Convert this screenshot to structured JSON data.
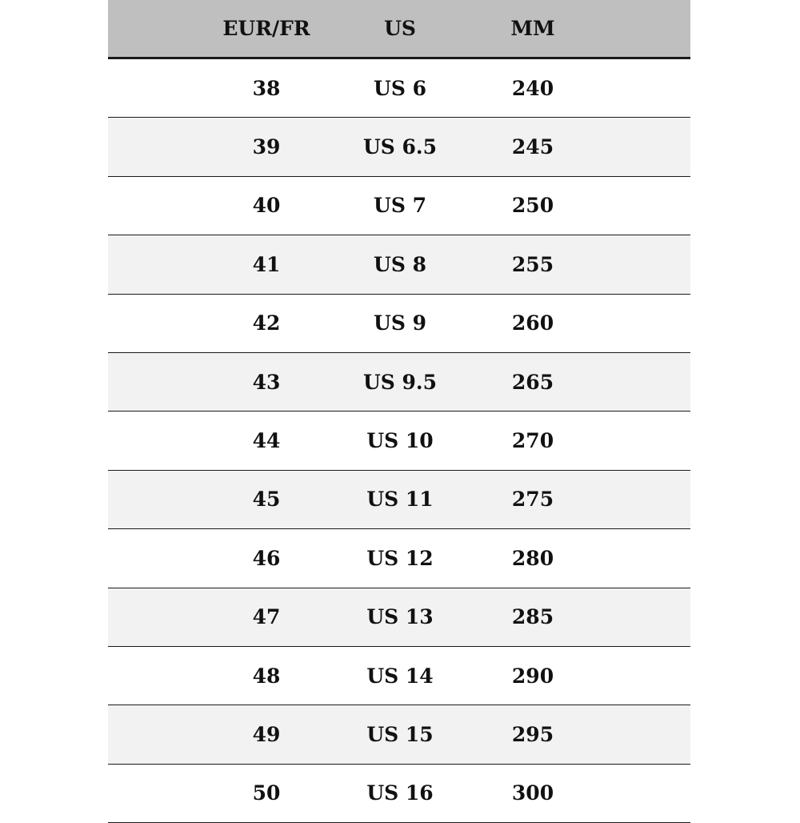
{
  "table": {
    "headers": [
      "EUR/FR",
      "US",
      "MM"
    ],
    "rows": [
      [
        "38",
        "US 6",
        "240"
      ],
      [
        "39",
        "US 6.5",
        "245"
      ],
      [
        "40",
        "US 7",
        "250"
      ],
      [
        "41",
        "US 8",
        "255"
      ],
      [
        "42",
        "US 9",
        "260"
      ],
      [
        "43",
        "US 9.5",
        "265"
      ],
      [
        "44",
        "US 10",
        "270"
      ],
      [
        "45",
        "US 11",
        "275"
      ],
      [
        "46",
        "US 12",
        "280"
      ],
      [
        "47",
        "US 13",
        "285"
      ],
      [
        "48",
        "US 14",
        "290"
      ],
      [
        "49",
        "US 15",
        "295"
      ],
      [
        "50",
        "US 16",
        "300"
      ]
    ]
  },
  "colors": {
    "header_bg": "#bfbfbf",
    "stripe_bg": "#f2f2f2",
    "rule": "#1a1a1a"
  }
}
